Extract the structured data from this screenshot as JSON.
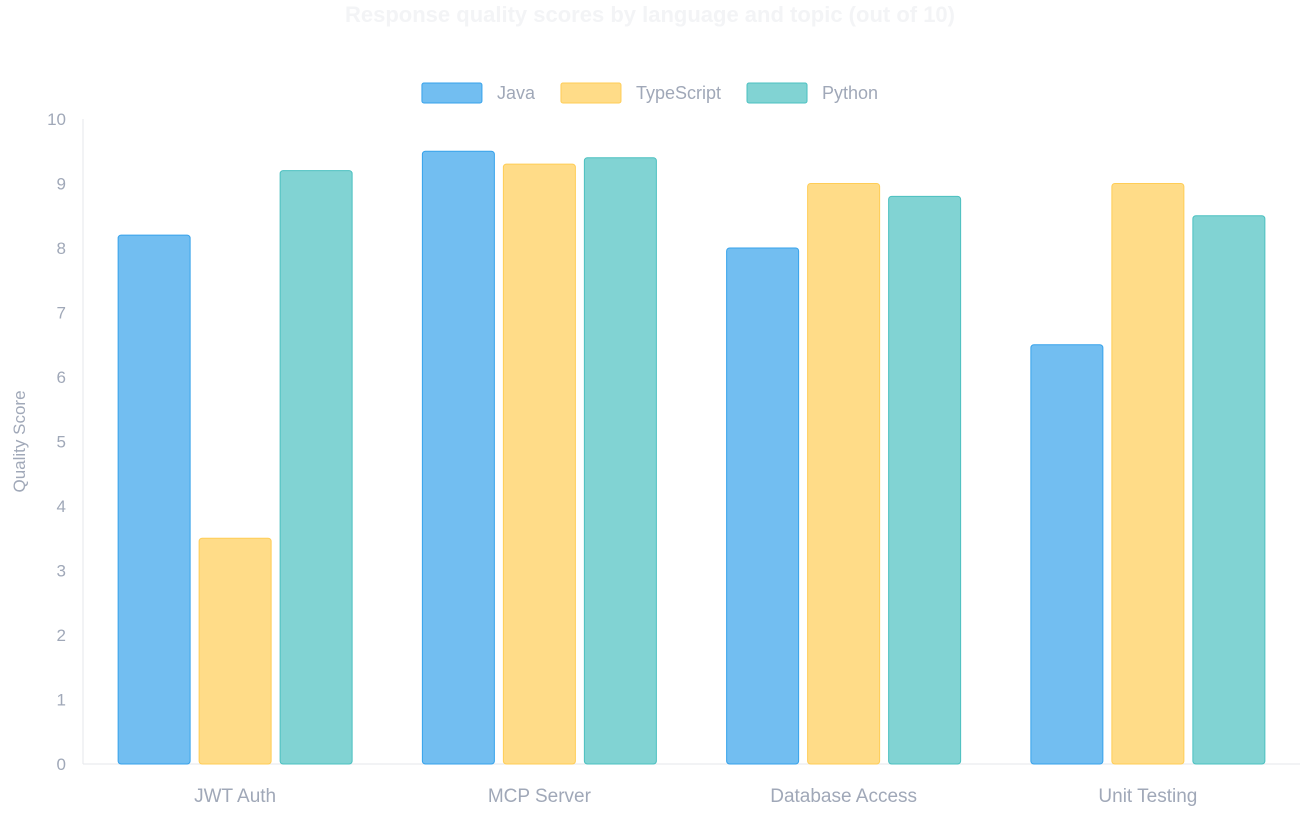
{
  "chart_data": {
    "type": "bar",
    "title": "Response quality scores by language and topic (out of 10)",
    "xlabel": "",
    "ylabel": "Quality Score",
    "ylim": [
      0,
      10
    ],
    "yticks": [
      0,
      1,
      2,
      3,
      4,
      5,
      6,
      7,
      8,
      9,
      10
    ],
    "categories": [
      "JWT Auth",
      "MCP Server",
      "Database Access",
      "Unit Testing"
    ],
    "legend_position": "top-center",
    "grid": false,
    "series": [
      {
        "name": "Java",
        "values": [
          8.2,
          9.5,
          8.0,
          6.5
        ],
        "color": "#36a2eb"
      },
      {
        "name": "TypeScript",
        "values": [
          3.5,
          9.3,
          9.0,
          9.0
        ],
        "color": "#ffcd56"
      },
      {
        "name": "Python",
        "values": [
          9.2,
          9.4,
          8.8,
          8.5
        ],
        "color": "#4bc0c0"
      }
    ]
  }
}
